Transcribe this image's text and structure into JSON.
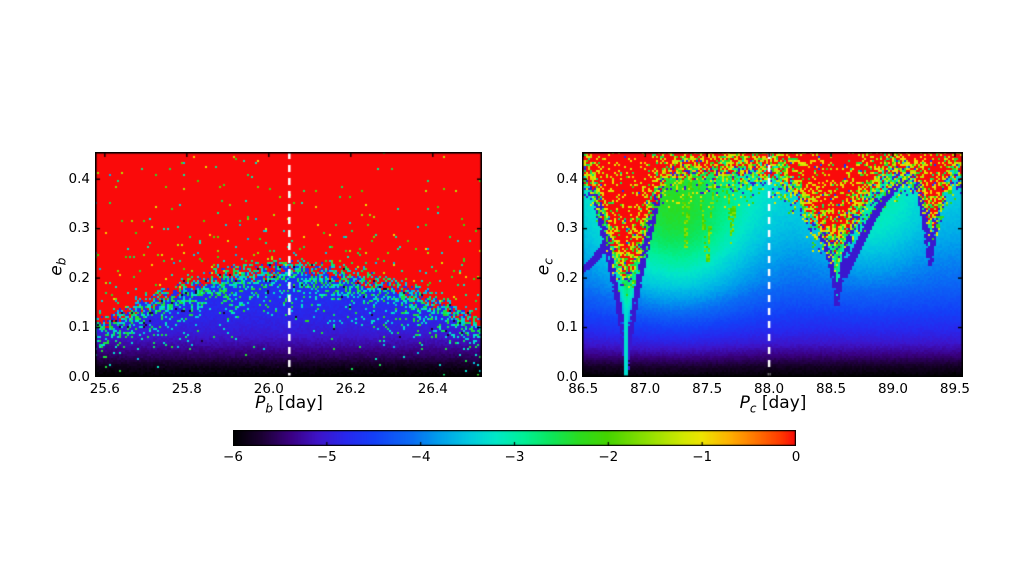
{
  "figure": {
    "background": "#ffffff"
  },
  "colormap_stops": [
    [
      -6.0,
      "#000000"
    ],
    [
      -5.7,
      "#1c0033"
    ],
    [
      -5.4,
      "#3a0080"
    ],
    [
      -5.1,
      "#3e14c8"
    ],
    [
      -4.8,
      "#2828ee"
    ],
    [
      -4.5,
      "#1440f8"
    ],
    [
      -4.1,
      "#0a6cf4"
    ],
    [
      -3.8,
      "#00a0ec"
    ],
    [
      -3.5,
      "#00c8e0"
    ],
    [
      -3.2,
      "#00e8c8"
    ],
    [
      -2.9,
      "#00f096"
    ],
    [
      -2.6,
      "#0ee65a"
    ],
    [
      -2.3,
      "#2cdc1e"
    ],
    [
      -2.0,
      "#46d400"
    ],
    [
      -1.6,
      "#8ce000"
    ],
    [
      -1.2,
      "#d2e800"
    ],
    [
      -1.0,
      "#eee400"
    ],
    [
      -0.7,
      "#ffb000"
    ],
    [
      -0.4,
      "#ff7000"
    ],
    [
      -0.15,
      "#ff3800"
    ],
    [
      0.0,
      "#fa0a0a"
    ]
  ],
  "colorbar": {
    "range": [
      -6,
      0
    ],
    "tick_values": [
      -6,
      -5,
      -4,
      -3,
      -2,
      -1,
      0
    ],
    "tick_labels": [
      "−6",
      "−5",
      "−4",
      "−3",
      "−2",
      "−1",
      "0"
    ]
  },
  "dashed_line_color": "#ffffff",
  "chart_data": [
    {
      "type": "heatmap",
      "xlabel": "P_b [day]",
      "ylabel": "e_b",
      "xlabel_parts": {
        "pre": "P",
        "sub": "b",
        "post": " [day]"
      },
      "ylabel_parts": {
        "pre": "e",
        "sub": "b"
      },
      "xlim": [
        25.576,
        26.52
      ],
      "ylim": [
        0,
        0.455
      ],
      "xticks": [
        25.6,
        25.8,
        26.0,
        26.2,
        26.4
      ],
      "xtick_labels": [
        "25.6",
        "25.8",
        "26.0",
        "26.2",
        "26.4"
      ],
      "yticks": [
        0.0,
        0.1,
        0.2,
        0.3,
        0.4
      ],
      "ytick_labels": [
        "0.0",
        "0.1",
        "0.2",
        "0.3",
        "0.4"
      ],
      "dashed_line_x": 26.05,
      "value_range": [
        -6,
        0
      ],
      "model": {
        "base_profile": [
          [
            0,
            -6
          ],
          [
            0.018,
            -5.88
          ],
          [
            0.04,
            -5.55
          ],
          [
            0.065,
            -5.25
          ],
          [
            0.09,
            -5.0
          ],
          [
            0.12,
            -4.85
          ],
          [
            0.16,
            -4.75
          ],
          [
            0.3,
            -4.6
          ],
          [
            0.455,
            -4.55
          ]
        ],
        "chaos_boundary": [
          [
            25.576,
            0.11
          ],
          [
            25.64,
            0.13
          ],
          [
            25.72,
            0.16
          ],
          [
            25.8,
            0.185
          ],
          [
            25.88,
            0.205
          ],
          [
            25.96,
            0.215
          ],
          [
            26.05,
            0.225
          ],
          [
            26.14,
            0.215
          ],
          [
            26.22,
            0.205
          ],
          [
            26.3,
            0.185
          ],
          [
            26.38,
            0.165
          ],
          [
            26.45,
            0.14
          ],
          [
            26.52,
            0.105
          ]
        ],
        "speckle": {
          "jitter": 0.045,
          "band_decay": 0.032,
          "dot_amp": 0.07,
          "dot_decay": 0.055,
          "dot_base": 0.009
        }
      }
    },
    {
      "type": "heatmap",
      "xlabel": "P_c [day]",
      "ylabel": "e_c",
      "xlabel_parts": {
        "pre": "P",
        "sub": "c",
        "post": " [day]"
      },
      "ylabel_parts": {
        "pre": "e",
        "sub": "c"
      },
      "xlim": [
        86.49,
        89.565
      ],
      "ylim": [
        0,
        0.455
      ],
      "xticks": [
        86.5,
        87.0,
        87.5,
        88.0,
        88.5,
        89.0,
        89.5
      ],
      "xtick_labels": [
        "86.5",
        "87.0",
        "87.5",
        "88.0",
        "88.5",
        "89.0",
        "89.5"
      ],
      "yticks": [
        0.0,
        0.1,
        0.2,
        0.3,
        0.4
      ],
      "ytick_labels": [
        "0.0",
        "0.1",
        "0.2",
        "0.3",
        "0.4"
      ],
      "dashed_line_x": 88.0,
      "value_range": [
        -6,
        0
      ],
      "model": {
        "base_profile": [
          [
            0,
            -6
          ],
          [
            0.02,
            -5.8
          ],
          [
            0.045,
            -5.4
          ],
          [
            0.07,
            -5.05
          ],
          [
            0.1,
            -4.75
          ],
          [
            0.14,
            -4.45
          ],
          [
            0.19,
            -4.15
          ],
          [
            0.24,
            -3.95
          ],
          [
            0.3,
            -3.7
          ],
          [
            0.36,
            -3.5
          ],
          [
            0.455,
            -3.3
          ]
        ],
        "plumes": [
          {
            "cP": 87.25,
            "sP": 0.4,
            "cE": 0.31,
            "sE": 0.12,
            "amp": 1.25
          },
          {
            "cP": 88.8,
            "sP": 0.28,
            "cE": 0.33,
            "sE": 0.09,
            "amp": 0.55
          }
        ],
        "funnels": [
          {
            "c": 86.85,
            "tip": 0.015,
            "hw": 0.34,
            "exp": 1.35,
            "amp": 1.1
          },
          {
            "c": 88.55,
            "tip": 0.145,
            "hw": 0.3,
            "exp": 1.35,
            "amp": 1.15
          },
          {
            "c": 89.3,
            "tip": 0.225,
            "hw": 0.13,
            "exp": 1.2,
            "amp": 0.9
          }
        ],
        "filaments": [
          {
            "c": 87.5,
            "tip": 0.22,
            "hw": 0.085,
            "exp": 1.2
          },
          {
            "c": 87.7,
            "tip": 0.27,
            "hw": 0.06,
            "exp": 1.2
          },
          {
            "c": 87.33,
            "tip": 0.26,
            "hw": 0.05,
            "exp": 1.2
          }
        ],
        "arcs": [
          [
            [
              86.49,
              0.215
            ],
            [
              86.6,
              0.24
            ],
            [
              86.7,
              0.275
            ],
            [
              86.78,
              0.325
            ],
            [
              86.83,
              0.385
            ],
            [
              86.85,
              0.44
            ]
          ],
          [
            [
              88.6,
              0.205
            ],
            [
              88.72,
              0.265
            ],
            [
              88.82,
              0.315
            ],
            [
              88.92,
              0.355
            ],
            [
              89.02,
              0.385
            ],
            [
              89.1,
              0.4
            ]
          ]
        ],
        "chaos": {
          "base": 0.415,
          "dips": [
            {
              "c": 86.85,
              "s": 0.2,
              "a": 0.205
            },
            {
              "c": 88.52,
              "s": 0.27,
              "a": 0.14
            },
            {
              "c": 89.32,
              "s": 0.1,
              "a": 0.1
            }
          ]
        }
      }
    }
  ]
}
